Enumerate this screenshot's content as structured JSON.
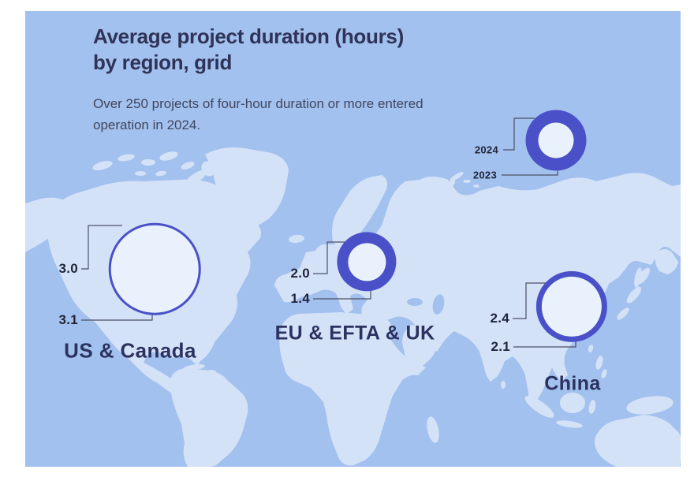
{
  "card": {
    "title_lines": [
      "Average project duration (hours)",
      "by region, grid"
    ],
    "subtitle_lines": [
      "Over 250 projects of four-hour duration or more entered",
      "operation in 2024."
    ]
  },
  "legend": {
    "ring_label": "2024",
    "inner_label": "2023"
  },
  "chart_data": {
    "type": "bubble-map",
    "title": "Average project duration (hours) by region, grid",
    "subtitle": "Over 250 projects of four-hour duration or more entered operation in 2024.",
    "unit": "hours",
    "series": [
      "2024",
      "2023"
    ],
    "regions": [
      {
        "name": "US & Canada",
        "values": {
          "2024": 3.0,
          "2023": 3.1
        },
        "display": {
          "2024": "3.0",
          "2023": "3.1"
        }
      },
      {
        "name": "EU & EFTA & UK",
        "values": {
          "2024": 2.0,
          "2023": 1.4
        },
        "display": {
          "2024": "2.0",
          "2023": "1.4"
        }
      },
      {
        "name": "China",
        "values": {
          "2024": 2.4,
          "2023": 2.1
        },
        "display": {
          "2024": "2.4",
          "2023": "2.1"
        }
      }
    ]
  },
  "colors": {
    "ocean": "#a3c1ee",
    "land": "#d4e2f8",
    "ring": "#4a51c8",
    "bubble_fill": "#e9f2fc",
    "title_text": "#2f3357",
    "subtitle_text": "#40465e",
    "value_text": "#20263a",
    "region_text": "#2c3260",
    "leader_line": "#4b5064"
  }
}
